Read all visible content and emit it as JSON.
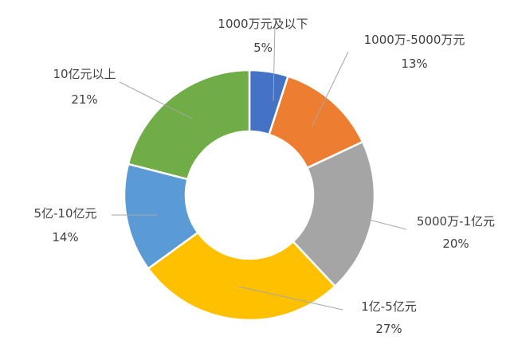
{
  "chart_data": {
    "type": "pie",
    "subtype": "donut",
    "title": "",
    "slices": [
      {
        "name": "1000万元及以下",
        "value": 5,
        "label": "5%",
        "color": "#4472C4"
      },
      {
        "name": "1000万-5000万元",
        "value": 13,
        "label": "13%",
        "color": "#ED7D31"
      },
      {
        "name": "5000万-1亿元",
        "value": 20,
        "label": "20%",
        "color": "#A5A5A5"
      },
      {
        "name": "1亿-5亿元",
        "value": 27,
        "label": "27%",
        "color": "#FFC000"
      },
      {
        "name": "5亿-10亿元",
        "value": 14,
        "label": "14%",
        "color": "#5B9BD5"
      },
      {
        "name": "10亿元以上",
        "value": 21,
        "label": "21%",
        "color": "#70AD47"
      }
    ],
    "start_angle_deg": 0,
    "direction": "clockwise",
    "legend": "none",
    "slice_border_color": "#ffffff",
    "leader_line_color": "#A6A6A6",
    "label_color": "#404040"
  }
}
